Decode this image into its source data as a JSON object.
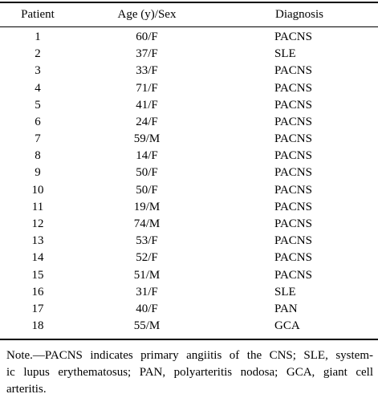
{
  "table": {
    "header": [
      "Patient",
      "Age (y)/Sex",
      "Diagnosis"
    ],
    "rows": [
      [
        "1",
        "60/F",
        "PACNS"
      ],
      [
        "2",
        "37/F",
        "SLE"
      ],
      [
        "3",
        "33/F",
        "PACNS"
      ],
      [
        "4",
        "71/F",
        "PACNS"
      ],
      [
        "5",
        "41/F",
        "PACNS"
      ],
      [
        "6",
        "24/F",
        "PACNS"
      ],
      [
        "7",
        "59/M",
        "PACNS"
      ],
      [
        "8",
        "14/F",
        "PACNS"
      ],
      [
        "9",
        "50/F",
        "PACNS"
      ],
      [
        "10",
        "50/F",
        "PACNS"
      ],
      [
        "11",
        "19/M",
        "PACNS"
      ],
      [
        "12",
        "74/M",
        "PACNS"
      ],
      [
        "13",
        "53/F",
        "PACNS"
      ],
      [
        "14",
        "52/F",
        "PACNS"
      ],
      [
        "15",
        "51/M",
        "PACNS"
      ],
      [
        "16",
        "31/F",
        "SLE"
      ],
      [
        "17",
        "40/F",
        "PAN"
      ],
      [
        "18",
        "55/M",
        "GCA"
      ]
    ],
    "note": [
      "Note.—PACNS indicates primary angiitis of the CNS; SLE, system-",
      "ic lupus erythematosus; PAN, polyarteritis nodosa; GCA, giant cell",
      "arteritis."
    ]
  }
}
